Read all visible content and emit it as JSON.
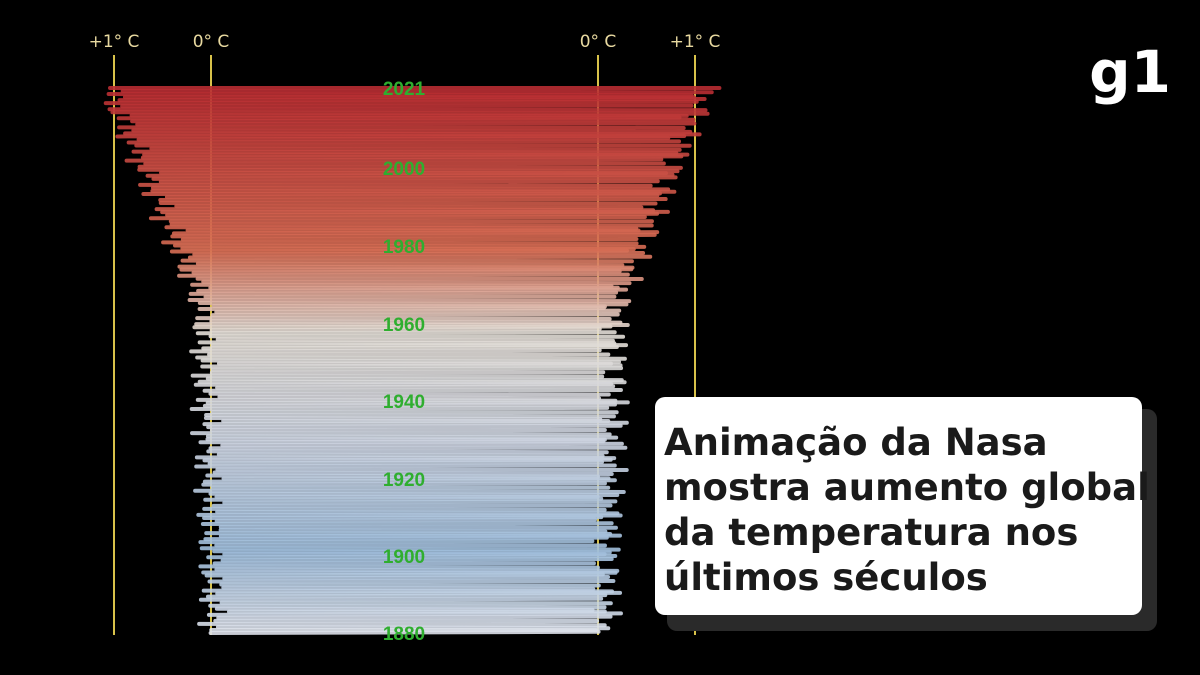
{
  "axis_labels": [
    "+1° C",
    "0° C",
    "0° C",
    "+1° C"
  ],
  "year_labels": [
    "2021",
    "2000",
    "1980",
    "1960",
    "1940",
    "1920",
    "1900",
    "1880"
  ],
  "headline": {
    "lines": [
      "Animação da Nasa",
      "mostra aumento global",
      "da temperatura nos",
      "últimos séculos"
    ]
  },
  "logo": "g1"
}
